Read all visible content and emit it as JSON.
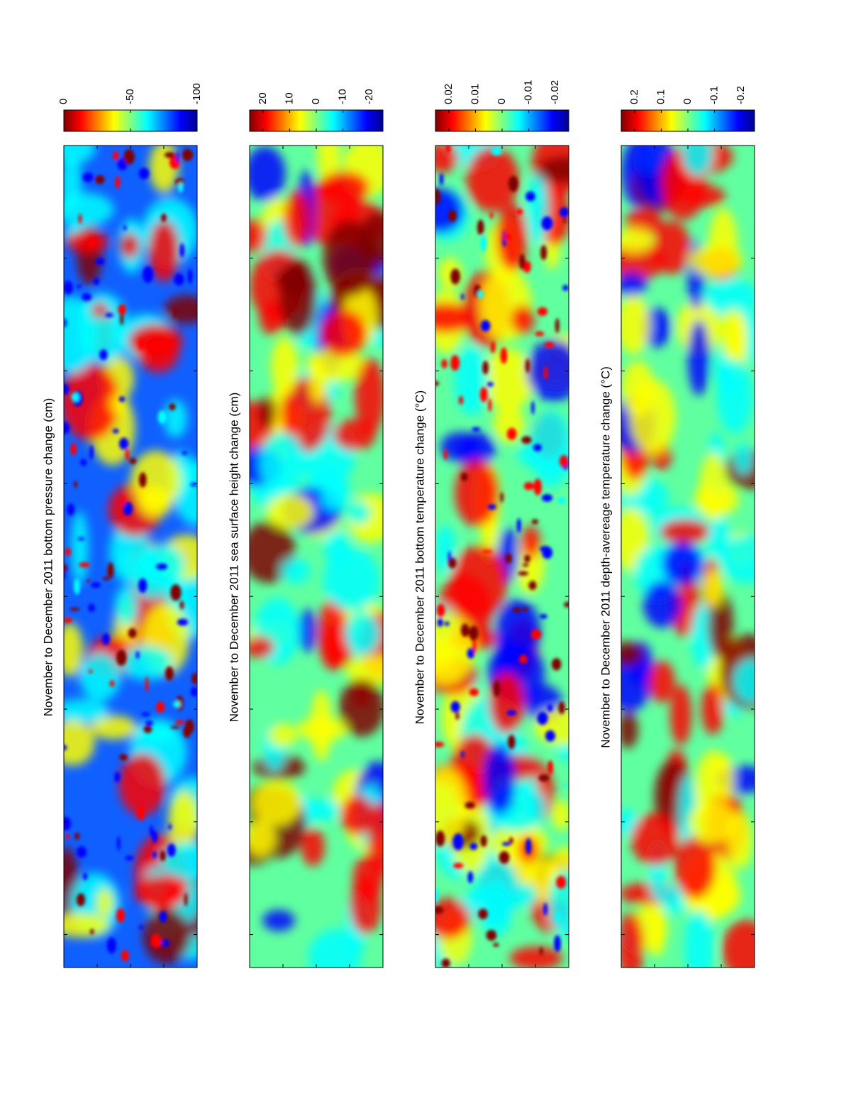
{
  "chart_data": [
    {
      "type": "heatmap",
      "title": "November to December 2011 bottom pressure change (cm)",
      "colormap": "jet",
      "clim": [
        0,
        -100
      ],
      "cticks": [
        0,
        -50,
        -100
      ]
    },
    {
      "type": "heatmap",
      "title": "November to December 2011 sea surface height change (cm)",
      "colormap": "jet",
      "clim": [
        25,
        -25
      ],
      "cticks": [
        20,
        10,
        0,
        -10,
        -20
      ]
    },
    {
      "type": "heatmap",
      "title": "November to December 2011 bottom temperature change (°C)",
      "colormap": "jet",
      "clim": [
        0.025,
        -0.025
      ],
      "cticks": [
        0.02,
        0.01,
        0,
        -0.01,
        -0.02
      ]
    },
    {
      "type": "heatmap",
      "title": "November to December 2011 depth-avereage temperature change (°C)",
      "colormap": "jet",
      "clim": [
        0.25,
        -0.25
      ],
      "cticks": [
        0.2,
        0.1,
        0,
        -0.1,
        -0.2
      ]
    }
  ]
}
